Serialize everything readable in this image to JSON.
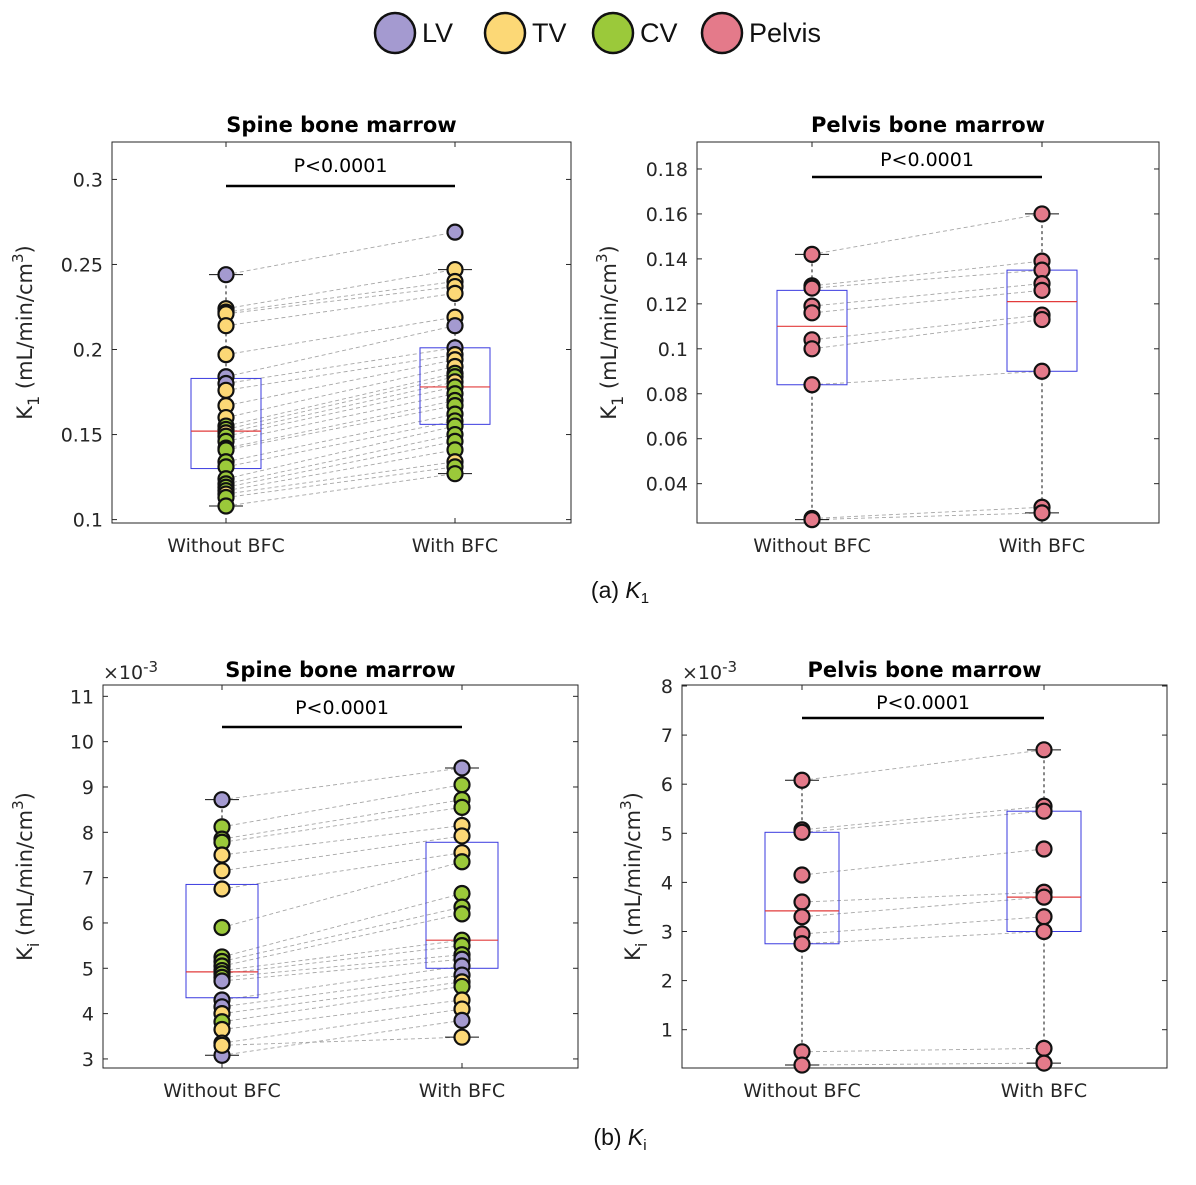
{
  "legend": [
    {
      "label": "LV",
      "color": "#a49ad0"
    },
    {
      "label": "TV",
      "color": "#fcd876"
    },
    {
      "label": "CV",
      "color": "#9bc93a"
    },
    {
      "label": "Pelvis",
      "color": "#e47a8a"
    }
  ],
  "captions": {
    "a": {
      "prefix": "(a) ",
      "sym": "K",
      "sub": "1"
    },
    "b": {
      "prefix": "(b) ",
      "sym": "K",
      "sub": "i"
    }
  },
  "chart_data": [
    {
      "type": "box-scatter-paired",
      "title": "Spine bone marrow",
      "annotation": "P<0.0001",
      "ylabel": {
        "prefix": "K",
        "sub": "1",
        "main": " (mL/min/cm",
        "sup": "3",
        "suffix": ")"
      },
      "exponent_label": "",
      "categories": [
        "Without BFC",
        "With BFC"
      ],
      "ylim": [
        0.098,
        0.322
      ],
      "yticks": [
        0.1,
        0.15,
        0.2,
        0.25,
        0.3
      ],
      "ytick_labels": [
        "0.1",
        "0.15",
        "0.2",
        "0.25",
        "0.3"
      ],
      "grid": false,
      "boxes": [
        {
          "q1": 0.13,
          "median": 0.152,
          "q3": 0.183,
          "whisker_low": 0.108,
          "whisker_high": 0.244
        },
        {
          "q1": 0.156,
          "median": 0.178,
          "q3": 0.201,
          "whisker_low": 0.127,
          "whisker_high": 0.247
        }
      ],
      "pairs": [
        {
          "group": "LV",
          "without": 0.244,
          "with": 0.269
        },
        {
          "group": "TV",
          "without": 0.224,
          "with": 0.247
        },
        {
          "group": "TV",
          "without": 0.222,
          "with": 0.24
        },
        {
          "group": "TV",
          "without": 0.221,
          "with": 0.237
        },
        {
          "group": "TV",
          "without": 0.214,
          "with": 0.233
        },
        {
          "group": "TV",
          "without": 0.197,
          "with": 0.219
        },
        {
          "group": "LV",
          "without": 0.184,
          "with": 0.214
        },
        {
          "group": "LV",
          "without": 0.18,
          "with": 0.201
        },
        {
          "group": "TV",
          "without": 0.176,
          "with": 0.197
        },
        {
          "group": "TV",
          "without": 0.167,
          "with": 0.194
        },
        {
          "group": "TV",
          "without": 0.16,
          "with": 0.19
        },
        {
          "group": "CV",
          "without": 0.155,
          "with": 0.186
        },
        {
          "group": "CV",
          "without": 0.153,
          "with": 0.184
        },
        {
          "group": "TV",
          "without": 0.151,
          "with": 0.181
        },
        {
          "group": "CV",
          "without": 0.149,
          "with": 0.178
        },
        {
          "group": "CV",
          "without": 0.146,
          "with": 0.174
        },
        {
          "group": "CV",
          "without": 0.142,
          "with": 0.17
        },
        {
          "group": "CV",
          "without": 0.141,
          "with": 0.167
        },
        {
          "group": "CV",
          "without": 0.134,
          "with": 0.162
        },
        {
          "group": "CV",
          "without": 0.131,
          "with": 0.158
        },
        {
          "group": "CV",
          "without": 0.124,
          "with": 0.155
        },
        {
          "group": "CV",
          "without": 0.121,
          "with": 0.15
        },
        {
          "group": "CV",
          "without": 0.119,
          "with": 0.146
        },
        {
          "group": "CV",
          "without": 0.117,
          "with": 0.141
        },
        {
          "group": "TV",
          "without": 0.115,
          "with": 0.134
        },
        {
          "group": "CV",
          "without": 0.113,
          "with": 0.131
        },
        {
          "group": "CV",
          "without": 0.108,
          "with": 0.127
        }
      ]
    },
    {
      "type": "box-scatter-paired",
      "title": "Pelvis bone marrow",
      "annotation": "P<0.0001",
      "ylabel": {
        "prefix": "K",
        "sub": "1",
        "main": " (mL/min/cm",
        "sup": "3",
        "suffix": ")"
      },
      "exponent_label": "",
      "categories": [
        "Without BFC",
        "With BFC"
      ],
      "ylim": [
        0.0225,
        0.192
      ],
      "yticks": [
        0.04,
        0.06,
        0.08,
        0.1,
        0.12,
        0.14,
        0.16,
        0.18
      ],
      "ytick_labels": [
        "0.04",
        "0.06",
        "0.08",
        "0.1",
        "0.12",
        "0.14",
        "0.16",
        "0.18"
      ],
      "grid": false,
      "boxes": [
        {
          "q1": 0.084,
          "median": 0.11,
          "q3": 0.126,
          "whisker_low": 0.024,
          "whisker_high": 0.142
        },
        {
          "q1": 0.09,
          "median": 0.121,
          "q3": 0.135,
          "whisker_low": 0.027,
          "whisker_high": 0.16
        }
      ],
      "pairs": [
        {
          "group": "Pelvis",
          "without": 0.142,
          "with": 0.16
        },
        {
          "group": "Pelvis",
          "without": 0.128,
          "with": 0.139
        },
        {
          "group": "Pelvis",
          "without": 0.127,
          "with": 0.135
        },
        {
          "group": "Pelvis",
          "without": 0.119,
          "with": 0.129
        },
        {
          "group": "Pelvis",
          "without": 0.116,
          "with": 0.126
        },
        {
          "group": "Pelvis",
          "without": 0.104,
          "with": 0.115
        },
        {
          "group": "Pelvis",
          "without": 0.1,
          "with": 0.113
        },
        {
          "group": "Pelvis",
          "without": 0.084,
          "with": 0.09
        },
        {
          "group": "Pelvis",
          "without": 0.0245,
          "with": 0.0295
        },
        {
          "group": "Pelvis",
          "without": 0.024,
          "with": 0.027
        }
      ]
    },
    {
      "type": "box-scatter-paired",
      "title": "Spine bone marrow",
      "annotation": "P<0.0001",
      "ylabel": {
        "prefix": "K",
        "sub": "i",
        "main": " (mL/min/cm",
        "sup": "3",
        "suffix": ")"
      },
      "exponent_label": "×10-3",
      "exponent": {
        "base": "×10",
        "power": "-3"
      },
      "categories": [
        "Without BFC",
        "With BFC"
      ],
      "ylim": [
        2.8,
        11.25
      ],
      "yticks": [
        3,
        4,
        5,
        6,
        7,
        8,
        9,
        10,
        11
      ],
      "ytick_labels": [
        "3",
        "4",
        "5",
        "6",
        "7",
        "8",
        "9",
        "10",
        "11"
      ],
      "grid": false,
      "boxes": [
        {
          "q1": 4.35,
          "median": 4.92,
          "q3": 6.85,
          "whisker_low": 3.08,
          "whisker_high": 8.72
        },
        {
          "q1": 5.0,
          "median": 5.62,
          "q3": 7.78,
          "whisker_low": 3.48,
          "whisker_high": 9.42
        }
      ],
      "pairs": [
        {
          "group": "LV",
          "without": 8.72,
          "with": 9.42
        },
        {
          "group": "CV",
          "without": 8.12,
          "with": 9.05
        },
        {
          "group": "CV",
          "without": 7.85,
          "with": 8.72
        },
        {
          "group": "CV",
          "without": 7.78,
          "with": 8.55
        },
        {
          "group": "TV",
          "without": 7.5,
          "with": 8.15
        },
        {
          "group": "TV",
          "without": 7.15,
          "with": 7.92
        },
        {
          "group": "TV",
          "without": 6.75,
          "with": 7.55
        },
        {
          "group": "CV",
          "without": 5.9,
          "with": 7.35
        },
        {
          "group": "CV",
          "without": 5.25,
          "with": 6.65
        },
        {
          "group": "CV",
          "without": 5.15,
          "with": 6.35
        },
        {
          "group": "CV",
          "without": 5.05,
          "with": 6.2
        },
        {
          "group": "CV",
          "without": 4.95,
          "with": 5.62
        },
        {
          "group": "CV",
          "without": 4.88,
          "with": 5.5
        },
        {
          "group": "CV",
          "without": 4.8,
          "with": 5.3
        },
        {
          "group": "LV",
          "without": 4.72,
          "with": 5.2
        },
        {
          "group": "LV",
          "without": 4.3,
          "with": 5.05
        },
        {
          "group": "LV",
          "without": 4.15,
          "with": 4.85
        },
        {
          "group": "TV",
          "without": 4.0,
          "with": 4.7
        },
        {
          "group": "CV",
          "without": 3.82,
          "with": 4.6
        },
        {
          "group": "TV",
          "without": 3.65,
          "with": 4.3
        },
        {
          "group": "TV",
          "without": 3.35,
          "with": 4.1
        },
        {
          "group": "LV",
          "without": 3.08,
          "with": 3.85
        },
        {
          "group": "TV",
          "without": 3.3,
          "with": 3.48
        }
      ]
    },
    {
      "type": "box-scatter-paired",
      "title": "Pelvis bone marrow",
      "annotation": "P<0.0001",
      "ylabel": {
        "prefix": "K",
        "sub": "i",
        "main": " (mL/min/cm",
        "sup": "3",
        "suffix": ")"
      },
      "exponent_label": "×10-3",
      "exponent": {
        "base": "×10",
        "power": "-3"
      },
      "categories": [
        "Without BFC",
        "With BFC"
      ],
      "ylim": [
        0.22,
        8.02
      ],
      "yticks": [
        1,
        2,
        3,
        4,
        5,
        6,
        7,
        8
      ],
      "ytick_labels": [
        "1",
        "2",
        "3",
        "4",
        "5",
        "6",
        "7",
        "8"
      ],
      "grid": false,
      "boxes": [
        {
          "q1": 2.75,
          "median": 3.42,
          "q3": 5.02,
          "whisker_low": 0.28,
          "whisker_high": 6.08
        },
        {
          "q1": 3.0,
          "median": 3.7,
          "q3": 5.45,
          "whisker_low": 0.32,
          "whisker_high": 6.7
        }
      ],
      "pairs": [
        {
          "group": "Pelvis",
          "without": 6.08,
          "with": 6.7
        },
        {
          "group": "Pelvis",
          "without": 5.07,
          "with": 5.55
        },
        {
          "group": "Pelvis",
          "without": 5.02,
          "with": 5.45
        },
        {
          "group": "Pelvis",
          "without": 4.15,
          "with": 4.68
        },
        {
          "group": "Pelvis",
          "without": 3.6,
          "with": 3.8
        },
        {
          "group": "Pelvis",
          "without": 3.3,
          "with": 3.7
        },
        {
          "group": "Pelvis",
          "without": 2.95,
          "with": 3.3
        },
        {
          "group": "Pelvis",
          "without": 2.75,
          "with": 3.0
        },
        {
          "group": "Pelvis",
          "without": 0.55,
          "with": 0.62
        },
        {
          "group": "Pelvis",
          "without": 0.28,
          "with": 0.32
        }
      ]
    }
  ]
}
